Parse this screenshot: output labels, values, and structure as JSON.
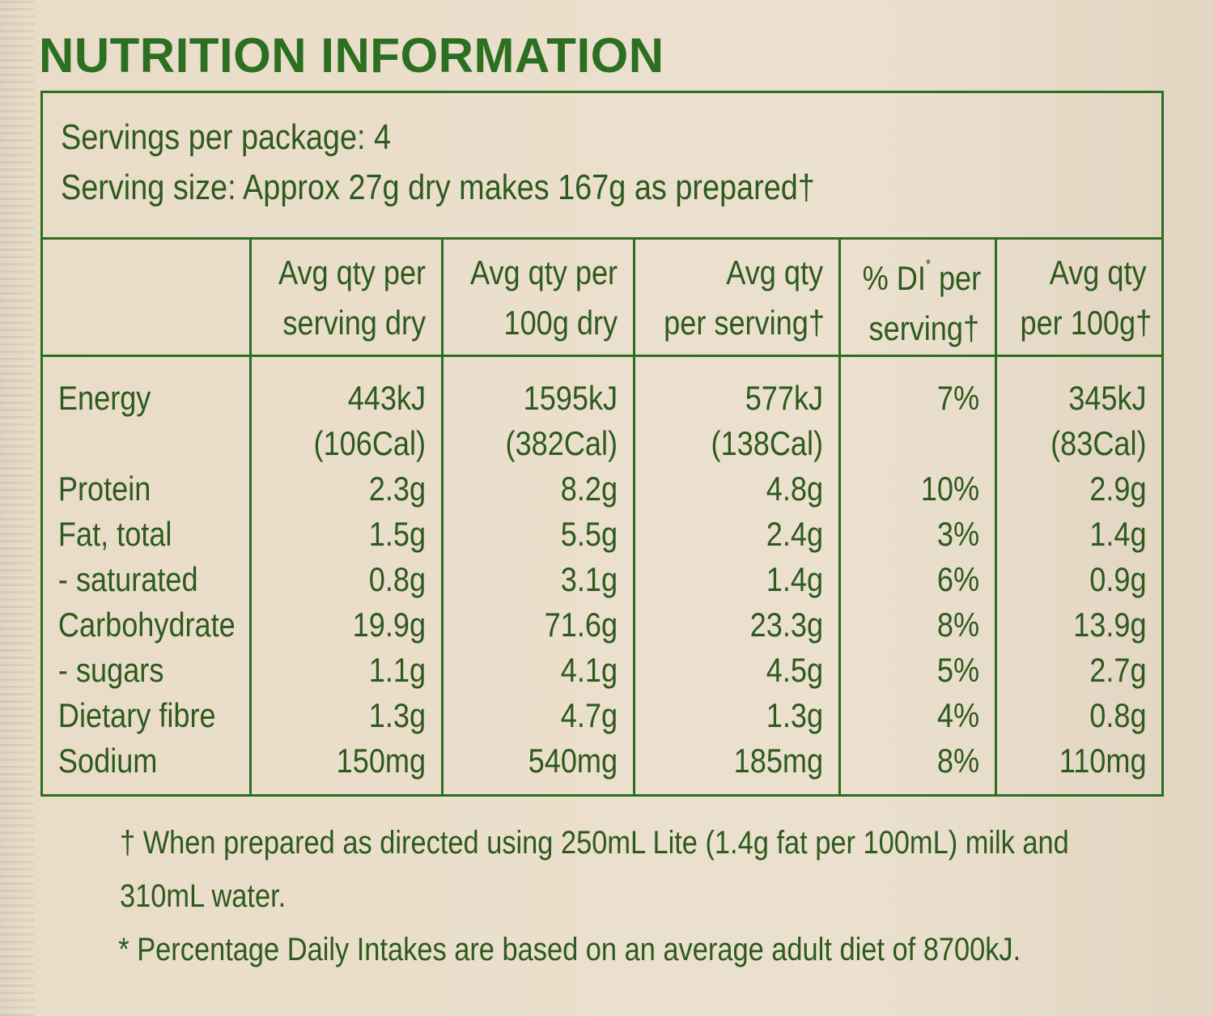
{
  "title": "NUTRITION INFORMATION",
  "servings": {
    "per_package": "Servings per package: 4",
    "serving_size": "Serving size: Approx 27g dry makes 167g as prepared†"
  },
  "table": {
    "headers": [
      "",
      "Avg qty per serving dry",
      "Avg qty per 100g dry",
      "Avg qty per serving†",
      "% DI* per serving†",
      "Avg qty per 100g†"
    ],
    "header_lines": [
      [],
      [
        "Avg qty per",
        "serving dry"
      ],
      [
        "Avg qty per",
        "100g dry"
      ],
      [
        "Avg qty",
        "per serving†"
      ],
      [
        "% DI",
        "per",
        "serving†"
      ],
      [
        "Avg qty",
        "per 100g†"
      ]
    ],
    "rows": [
      {
        "nutrient": "Energy",
        "values": [
          [
            "443kJ",
            "(106Cal)"
          ],
          [
            "1595kJ",
            "(382Cal)"
          ],
          [
            "577kJ",
            "(138Cal)"
          ],
          [
            "7%",
            ""
          ],
          [
            "345kJ",
            "(83Cal)"
          ]
        ]
      },
      {
        "nutrient": "Protein",
        "values": [
          "2.3g",
          "8.2g",
          "4.8g",
          "10%",
          "2.9g"
        ]
      },
      {
        "nutrient": "Fat, total",
        "values": [
          "1.5g",
          "5.5g",
          "2.4g",
          "3%",
          "1.4g"
        ]
      },
      {
        "nutrient": "- saturated",
        "values": [
          "0.8g",
          "3.1g",
          "1.4g",
          "6%",
          "0.9g"
        ]
      },
      {
        "nutrient": "Carbohydrate",
        "values": [
          "19.9g",
          "71.6g",
          "23.3g",
          "8%",
          "13.9g"
        ]
      },
      {
        "nutrient": "- sugars",
        "values": [
          "1.1g",
          "4.1g",
          "4.5g",
          "5%",
          "2.7g"
        ]
      },
      {
        "nutrient": "Dietary fibre",
        "values": [
          "1.3g",
          "4.7g",
          "1.3g",
          "4%",
          "0.8g"
        ]
      },
      {
        "nutrient": "Sodium",
        "values": [
          "150mg",
          "540mg",
          "185mg",
          "8%",
          "110mg"
        ]
      }
    ]
  },
  "footnotes": {
    "dagger_line1": "† When prepared as directed using 250mL Lite (1.4g fat per 100mL) milk and",
    "dagger_line2": "310mL water.",
    "asterisk": "* Percentage Daily Intakes are based on an average adult diet of 8700kJ."
  },
  "colors": {
    "text_green": "#2d6f20",
    "background": "#e9dcc8"
  }
}
